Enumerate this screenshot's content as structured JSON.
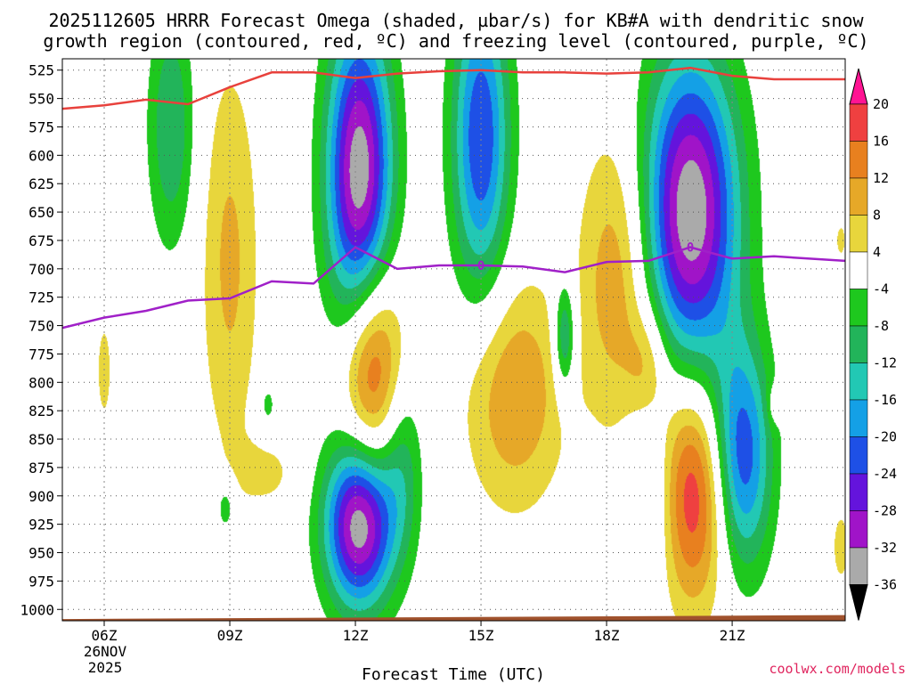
{
  "chart_data": {
    "type": "contour-timeheight",
    "title_line1": "2025112605 HRRR Forecast Omega (shaded, µbar/s) for KB#A with dendritic snow",
    "title_line2": "growth region (contoured, red, ºC) and freezing level (contoured, purple, ºC)",
    "xlabel": "Forecast Time (UTC)",
    "credit": "coolwx.com/models",
    "date_label": [
      "26NOV",
      "2025"
    ],
    "xlim": [
      5,
      23.7
    ],
    "x_ticks": [
      {
        "hour": 6,
        "label": "06Z"
      },
      {
        "hour": 9,
        "label": "09Z"
      },
      {
        "hour": 12,
        "label": "12Z"
      },
      {
        "hour": 15,
        "label": "15Z"
      },
      {
        "hour": 18,
        "label": "18Z"
      },
      {
        "hour": 21,
        "label": "21Z"
      }
    ],
    "ylim": [
      515,
      1010
    ],
    "y_ticks": [
      525,
      550,
      575,
      600,
      625,
      650,
      675,
      700,
      725,
      750,
      775,
      800,
      825,
      850,
      875,
      900,
      925,
      950,
      975,
      1000
    ],
    "colorbar": {
      "labels": [
        "20",
        "16",
        "12",
        "8",
        "4",
        "-4",
        "-8",
        "-12",
        "-16",
        "-20",
        "-24",
        "-28",
        "-32",
        "-36"
      ],
      "colors": [
        "#ff1493",
        "#ef4040",
        "#e8801f",
        "#e6a828",
        "#e8d63c",
        "#ffffff",
        "#1ec81e",
        "#22b45a",
        "#22c8b4",
        "#14a0e6",
        "#1e50e6",
        "#6414dc",
        "#a014c8",
        "#aaaaaa",
        "#000000"
      ]
    },
    "colors": {
      "dendritic_line": "#e8413c",
      "freezing_line": "#a020c8",
      "terrain": "#a0522d"
    },
    "freezing_level_label": "0",
    "dendritic_line": [
      [
        5,
        559
      ],
      [
        6,
        556
      ],
      [
        7,
        551
      ],
      [
        8,
        555
      ],
      [
        9,
        540
      ],
      [
        10,
        527
      ],
      [
        11,
        527
      ],
      [
        12,
        532
      ],
      [
        13,
        528
      ],
      [
        14,
        526
      ],
      [
        15,
        525
      ],
      [
        16,
        527
      ],
      [
        17,
        527
      ],
      [
        18,
        528
      ],
      [
        19,
        527
      ],
      [
        20,
        523
      ],
      [
        21,
        530
      ],
      [
        22,
        533
      ],
      [
        23.7,
        533
      ]
    ],
    "freezing_line": [
      [
        5,
        752
      ],
      [
        6,
        743
      ],
      [
        7,
        737
      ],
      [
        8,
        728
      ],
      [
        9,
        726
      ],
      [
        10,
        711
      ],
      [
        11,
        713
      ],
      [
        12,
        681
      ],
      [
        13,
        700
      ],
      [
        14,
        697
      ],
      [
        15,
        697
      ],
      [
        16,
        698
      ],
      [
        17,
        703
      ],
      [
        18,
        694
      ],
      [
        19,
        693
      ],
      [
        20,
        681
      ],
      [
        21,
        691
      ],
      [
        22,
        689
      ],
      [
        23.7,
        693
      ]
    ],
    "omega_blobs": [
      {
        "x": 7.6,
        "p": 575,
        "rx": 0.6,
        "ry": 115,
        "min": -12
      },
      {
        "x": 6.0,
        "p": 790,
        "rx": 0.3,
        "ry": 75,
        "min": 5
      },
      {
        "x": 9.0,
        "p": 695,
        "rx": 0.75,
        "ry": 190,
        "min": 9
      },
      {
        "x": 8.9,
        "p": 910,
        "rx": 0.25,
        "ry": 25,
        "min": -8
      },
      {
        "x": 9.9,
        "p": 880,
        "rx": 0.85,
        "ry": 35,
        "min": 5
      },
      {
        "x": 9.9,
        "p": 820,
        "rx": 0.25,
        "ry": 25,
        "min": -6
      },
      {
        "x": 12.1,
        "p": 620,
        "rx": 0.85,
        "ry": 150,
        "min": -36
      },
      {
        "x": 12.4,
        "p": 785,
        "rx": 0.8,
        "ry": 110,
        "min": 21
      },
      {
        "x": 12.1,
        "p": 925,
        "rx": 0.9,
        "ry": 80,
        "min": -36
      },
      {
        "x": 13.1,
        "p": 870,
        "rx": 0.55,
        "ry": 90,
        "min": -10
      },
      {
        "x": 15.0,
        "p": 585,
        "rx": 0.75,
        "ry": 150,
        "min": -24
      },
      {
        "x": 15.8,
        "p": 810,
        "rx": 1.3,
        "ry": 110,
        "min": 12
      },
      {
        "x": 17.0,
        "p": 760,
        "rx": 0.28,
        "ry": 55,
        "min": -15
      },
      {
        "x": 18.3,
        "p": 705,
        "rx": 1.0,
        "ry": 140,
        "min": 12
      },
      {
        "x": 19.0,
        "p": 785,
        "rx": 0.55,
        "ry": 55,
        "min": 8
      },
      {
        "x": 19.1,
        "p": 900,
        "rx": 0.75,
        "ry": 100,
        "min": -15
      },
      {
        "x": 20.0,
        "p": 650,
        "rx": 1.25,
        "ry": 150,
        "min": -36
      },
      {
        "x": 20.0,
        "p": 895,
        "rx": 1.3,
        "ry": 110,
        "min": 23
      },
      {
        "x": 21.2,
        "p": 870,
        "rx": 0.8,
        "ry": 110,
        "min": -28
      },
      {
        "x": 22.0,
        "p": 820,
        "rx": 0.2,
        "ry": 20,
        "min": 5
      },
      {
        "x": 23.6,
        "p": 675,
        "rx": 0.2,
        "ry": 25,
        "min": 5
      },
      {
        "x": 23.6,
        "p": 945,
        "rx": 0.35,
        "ry": 55,
        "min": 5
      }
    ]
  }
}
